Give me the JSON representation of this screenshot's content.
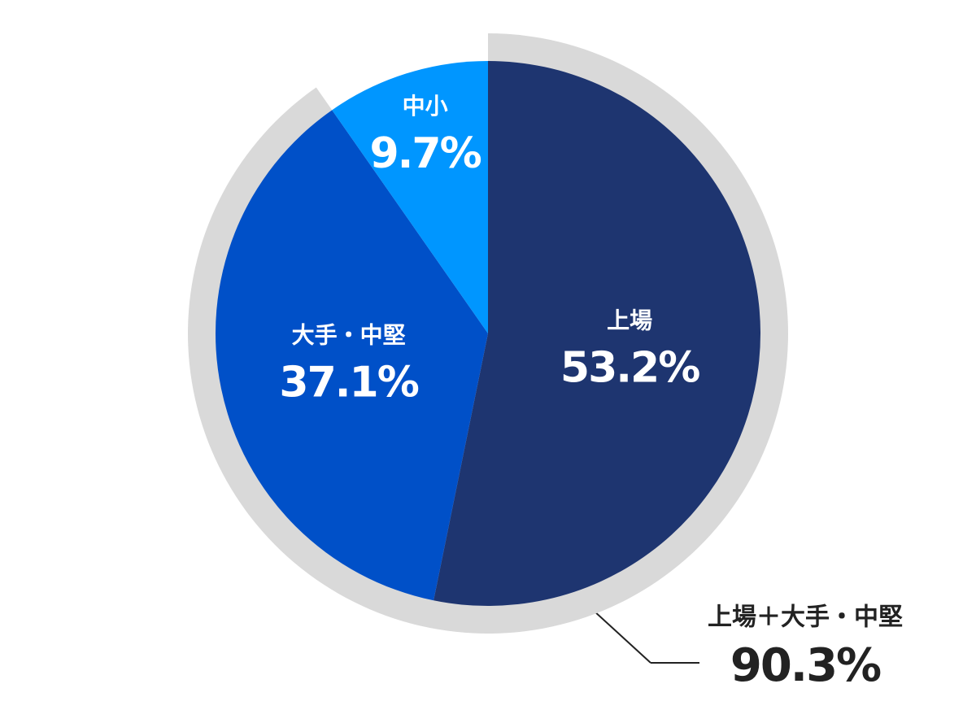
{
  "chart_data": {
    "type": "pie",
    "categories": [
      "上場",
      "大手・中堅",
      "中小"
    ],
    "values": [
      53.2,
      37.1,
      9.7
    ],
    "value_labels": [
      "53.2%",
      "37.1%",
      "9.7%"
    ],
    "colors": [
      "#1e3570",
      "#0050c8",
      "#0096ff"
    ],
    "annotation": {
      "label": "上場＋大手・中堅",
      "value": 90.3,
      "value_label": "90.3%",
      "color": "#d9d9d9"
    }
  }
}
